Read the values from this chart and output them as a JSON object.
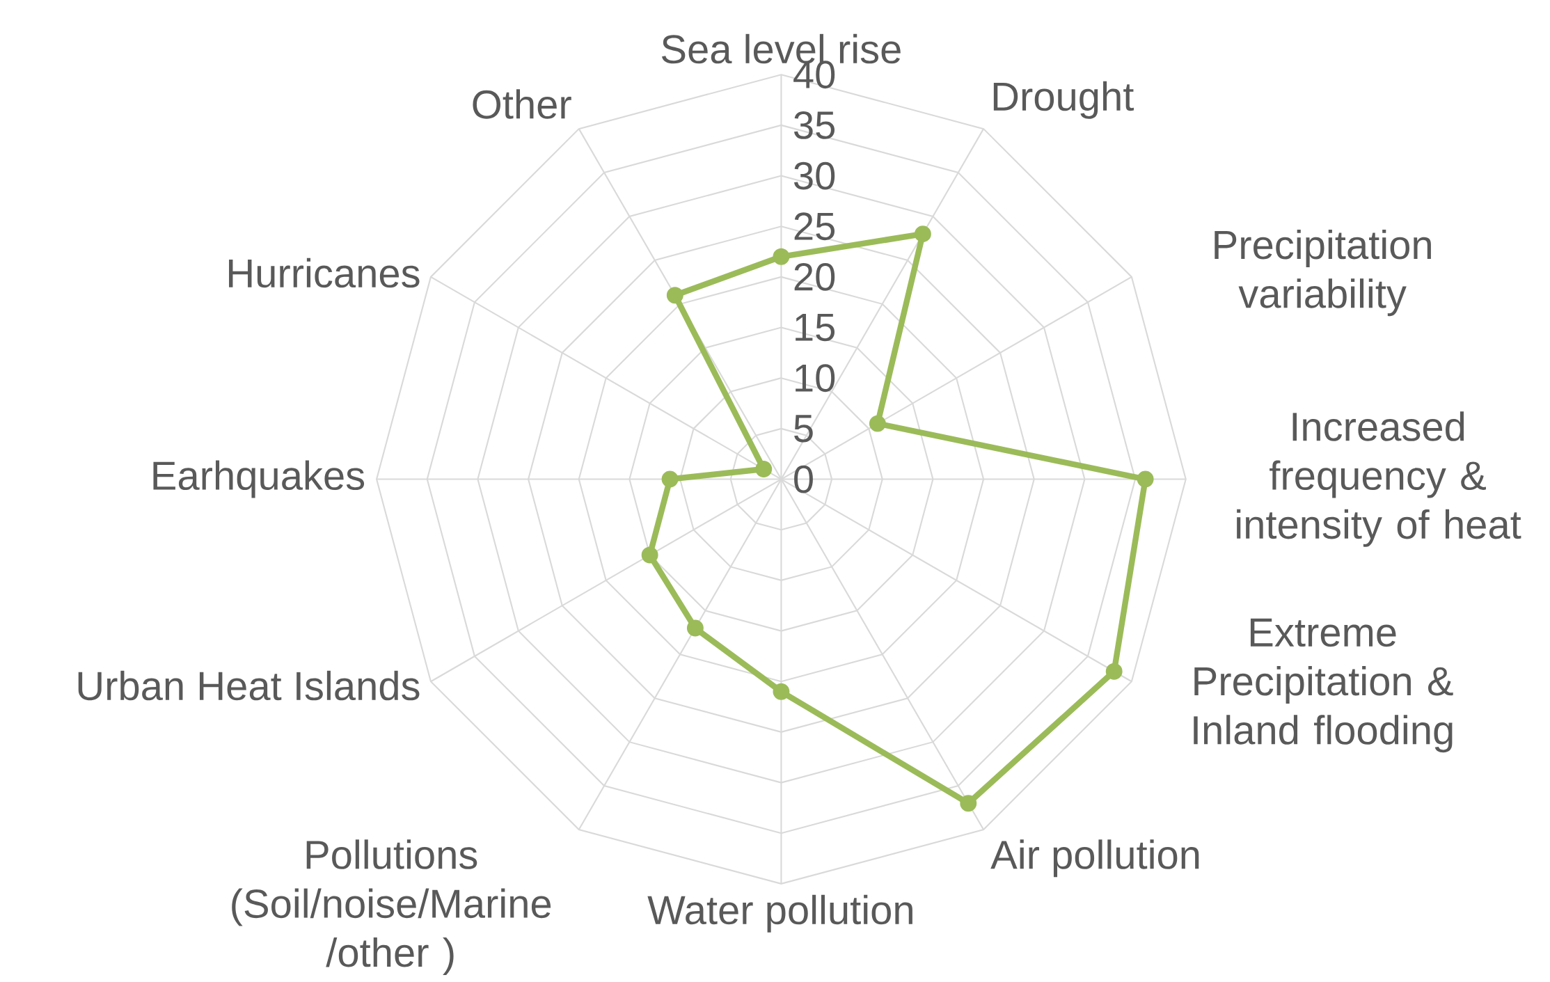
{
  "chart_data": {
    "type": "radar",
    "categories": [
      "Sea level rise",
      "Drought",
      "Precipitation variability",
      "Increased frequency & intensity of heat",
      "Extreme Precipitation & Inland flooding",
      "Air pollution",
      "Water pollution",
      "Pollutions (Soil/noise/Marine /other )",
      "Urban Heat Islands",
      "Earhquakes",
      "Hurricanes",
      "Other"
    ],
    "series": [
      {
        "color": "#9bbb59",
        "values": [
          22,
          28,
          11,
          36,
          38,
          37,
          21,
          17,
          15,
          11,
          2,
          21
        ]
      }
    ],
    "ylim": [
      0,
      40
    ],
    "yticks": [
      0,
      5,
      10,
      15,
      20,
      25,
      30,
      35,
      40
    ],
    "grid": true,
    "marker": "circle"
  }
}
